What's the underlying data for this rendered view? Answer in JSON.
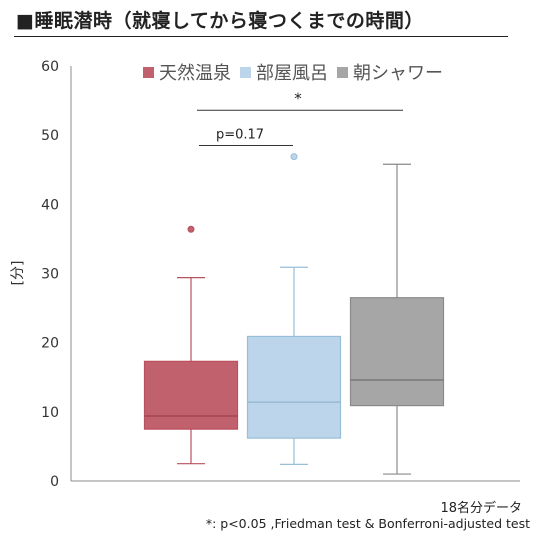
{
  "title": "■睡眠潜時（就寝してから寝つくまでの時間）",
  "n_note": "18名分データ",
  "footnote": "*: p<0.05 ,Friedman test & Bonferroni-adjusted test",
  "chart_data": {
    "type": "box",
    "title": "■睡眠潜時（就寝してから寝つくまでの時間）",
    "ylabel": "[分]",
    "ylim": [
      0,
      60
    ],
    "yticks": [
      0,
      10,
      20,
      30,
      40,
      50,
      60
    ],
    "grid": false,
    "legend_position": "top",
    "series": [
      {
        "name": "天然温泉",
        "color": "#b9505e",
        "fill": "#c2616e",
        "whisker_low": 2.5,
        "q1": 7.5,
        "median": 9.4,
        "q3": 17.3,
        "whisker_high": 29.4,
        "outliers": [
          36.4
        ]
      },
      {
        "name": "部屋風呂",
        "color": "#97bfd8",
        "fill": "#bdd5ea",
        "whisker_low": 2.4,
        "q1": 6.2,
        "median": 11.4,
        "q3": 20.9,
        "whisker_high": 30.9,
        "outliers": [
          46.9
        ]
      },
      {
        "name": "朝シャワー",
        "color": "#8a8a8a",
        "fill": "#a6a6a6",
        "whisker_low": 1.0,
        "q1": 10.9,
        "median": 14.6,
        "q3": 26.5,
        "whisker_high": 45.8,
        "outliers": []
      }
    ],
    "annotations": [
      {
        "label": "p=0.17",
        "from": 0,
        "to": 1,
        "y": 48.5
      },
      {
        "label": "*",
        "from": 0,
        "to": 2,
        "y": 53.6
      }
    ]
  }
}
